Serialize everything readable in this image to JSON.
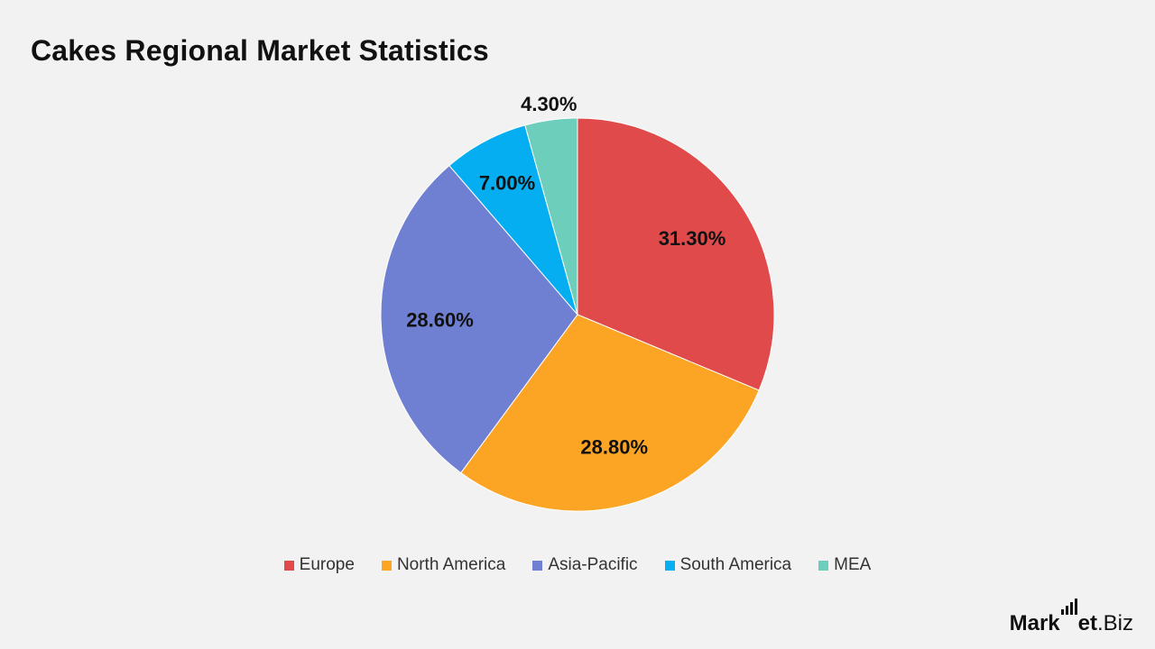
{
  "chart_data": {
    "type": "pie",
    "title": "Cakes Regional Market Statistics",
    "slices": [
      {
        "label": "Europe",
        "value": 31.3,
        "display": "31.30%",
        "color": "#e04a4a"
      },
      {
        "label": "North America",
        "value": 28.8,
        "display": "28.80%",
        "color": "#fca424"
      },
      {
        "label": "Asia-Pacific",
        "value": 28.6,
        "display": "28.60%",
        "color": "#6f80d2"
      },
      {
        "label": "South America",
        "value": 7.0,
        "display": "7.00%",
        "color": "#04aef0"
      },
      {
        "label": "MEA",
        "value": 4.3,
        "display": "4.30%",
        "color": "#6dcfbb"
      }
    ],
    "legend_position": "bottom",
    "start_angle": "12 o'clock",
    "direction": "clockwise"
  },
  "brand": {
    "part1": "Mark",
    "part2": "et",
    "part3": ".Biz"
  }
}
